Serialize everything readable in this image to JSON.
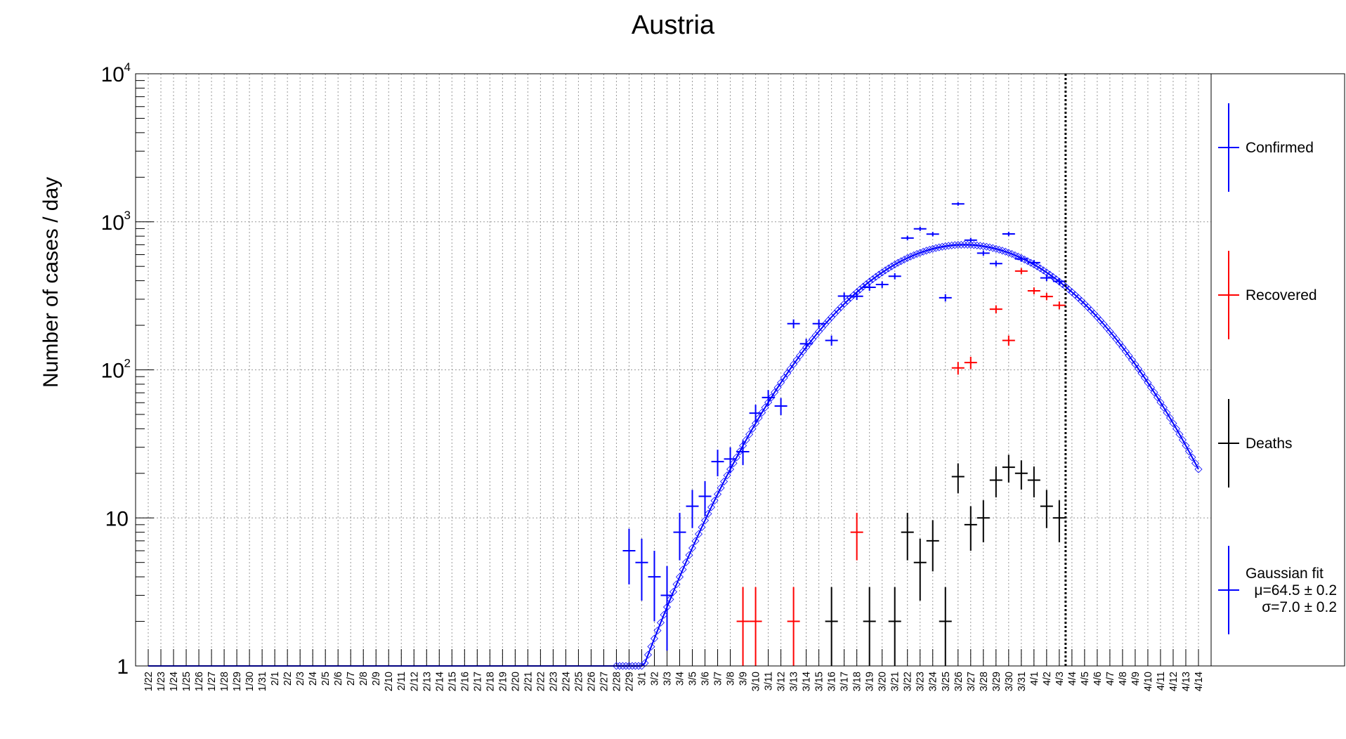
{
  "chart_data": {
    "type": "scatter",
    "title": "Austria",
    "xlabel": "",
    "ylabel": "Number of cases / day",
    "yscale": "log",
    "ylim": [
      1,
      10000
    ],
    "y_tick_labels": [
      "1",
      "10",
      "10",
      "10",
      "10"
    ],
    "y_tick_exponents": [
      "",
      "",
      "2",
      "3",
      "4"
    ],
    "grid": true,
    "legend_position": "right",
    "x": [
      "1/22",
      "1/23",
      "1/24",
      "1/25",
      "1/26",
      "1/27",
      "1/28",
      "1/29",
      "1/30",
      "1/31",
      "2/1",
      "2/2",
      "2/3",
      "2/4",
      "2/5",
      "2/6",
      "2/7",
      "2/8",
      "2/9",
      "2/10",
      "2/11",
      "2/12",
      "2/13",
      "2/14",
      "2/15",
      "2/16",
      "2/17",
      "2/18",
      "2/19",
      "2/20",
      "2/21",
      "2/22",
      "2/23",
      "2/24",
      "2/25",
      "2/26",
      "2/27",
      "2/28",
      "2/29",
      "3/1",
      "3/2",
      "3/3",
      "3/4",
      "3/5",
      "3/6",
      "3/7",
      "3/8",
      "3/9",
      "3/10",
      "3/11",
      "3/12",
      "3/13",
      "3/14",
      "3/15",
      "3/16",
      "3/17",
      "3/18",
      "3/19",
      "3/20",
      "3/21",
      "3/22",
      "3/23",
      "3/24",
      "3/25",
      "3/26",
      "3/27",
      "3/28",
      "3/29",
      "3/30",
      "3/31",
      "4/1",
      "4/2",
      "4/3",
      "4/4",
      "4/5",
      "4/6",
      "4/7",
      "4/8",
      "4/9",
      "4/10",
      "4/11",
      "4/12",
      "4/13",
      "4/14"
    ],
    "x_tick_labels": [
      "1/22",
      "1/23",
      "1/24",
      "1/25",
      "1/26",
      "1/27",
      "1/28",
      "1/29",
      "1/30",
      "1/31",
      "2/1",
      "2/2",
      "2/3",
      "2/4",
      "2/5",
      "2/6",
      "2/7",
      "2/8",
      "2/9",
      "2/10",
      "2/11",
      "2/12",
      "2/13",
      "2/14",
      "2/15",
      "2/16",
      "2/17",
      "2/18",
      "2/19",
      "2/20",
      "2/21",
      "2/22",
      "2/23",
      "2/24",
      "2/25",
      "2/26",
      "2/27",
      "2/28",
      "2/29",
      "3/1",
      "3/2",
      "3/3",
      "3/4",
      "3/5",
      "3/6",
      "3/7",
      "3/8",
      "3/9",
      "3/10",
      "3/11",
      "3/12",
      "3/13",
      "3/14",
      "3/15",
      "3/16",
      "3/17",
      "3/18",
      "3/19",
      "3/20",
      "3/21",
      "3/22",
      "3/23",
      "3/24",
      "3/25",
      "3/26",
      "3/27",
      "3/28",
      "3/29",
      "3/30",
      "3/31",
      "4/1",
      "4/2",
      "4/3",
      "4/4",
      "4/5",
      "4/6",
      "4/7",
      "4/8",
      "4/9",
      "4/10",
      "4/11",
      "4/12",
      "4/13",
      "4/14"
    ],
    "last_data_date": "4/3",
    "series": [
      {
        "name": "Confirmed",
        "color": "#0000ff",
        "points": [
          {
            "x": "2/29",
            "y": 6
          },
          {
            "x": "3/1",
            "y": 5
          },
          {
            "x": "3/2",
            "y": 4
          },
          {
            "x": "3/3",
            "y": 3
          },
          {
            "x": "3/4",
            "y": 8
          },
          {
            "x": "3/5",
            "y": 12
          },
          {
            "x": "3/6",
            "y": 14
          },
          {
            "x": "3/7",
            "y": 24
          },
          {
            "x": "3/8",
            "y": 25
          },
          {
            "x": "3/9",
            "y": 28
          },
          {
            "x": "3/10",
            "y": 51
          },
          {
            "x": "3/11",
            "y": 65
          },
          {
            "x": "3/12",
            "y": 57
          },
          {
            "x": "3/13",
            "y": 205
          },
          {
            "x": "3/14",
            "y": 150
          },
          {
            "x": "3/15",
            "y": 205
          },
          {
            "x": "3/16",
            "y": 158
          },
          {
            "x": "3/17",
            "y": 315
          },
          {
            "x": "3/18",
            "y": 314
          },
          {
            "x": "3/19",
            "y": 361
          },
          {
            "x": "3/20",
            "y": 377
          },
          {
            "x": "3/21",
            "y": 429
          },
          {
            "x": "3/22",
            "y": 777
          },
          {
            "x": "3/23",
            "y": 897
          },
          {
            "x": "3/24",
            "y": 826
          },
          {
            "x": "3/25",
            "y": 307
          },
          {
            "x": "3/26",
            "y": 1321
          },
          {
            "x": "3/27",
            "y": 752
          },
          {
            "x": "3/28",
            "y": 614
          },
          {
            "x": "3/29",
            "y": 522
          },
          {
            "x": "3/30",
            "y": 828
          },
          {
            "x": "3/31",
            "y": 561
          },
          {
            "x": "4/1",
            "y": 530
          },
          {
            "x": "4/2",
            "y": 418
          },
          {
            "x": "4/3",
            "y": 396
          }
        ]
      },
      {
        "name": "Recovered",
        "color": "#ff0000",
        "points": [
          {
            "x": "3/9",
            "y": 2
          },
          {
            "x": "3/10",
            "y": 2
          },
          {
            "x": "3/13",
            "y": 2
          },
          {
            "x": "3/18",
            "y": 8
          },
          {
            "x": "3/26",
            "y": 103
          },
          {
            "x": "3/27",
            "y": 112
          },
          {
            "x": "3/29",
            "y": 257
          },
          {
            "x": "3/30",
            "y": 158
          },
          {
            "x": "3/31",
            "y": 465
          },
          {
            "x": "4/1",
            "y": 342
          },
          {
            "x": "4/2",
            "y": 313
          },
          {
            "x": "4/3",
            "y": 273
          }
        ]
      },
      {
        "name": "Deaths",
        "color": "#000000",
        "points": [
          {
            "x": "3/16",
            "y": 2
          },
          {
            "x": "3/19",
            "y": 2
          },
          {
            "x": "3/21",
            "y": 2
          },
          {
            "x": "3/22",
            "y": 8
          },
          {
            "x": "3/23",
            "y": 5
          },
          {
            "x": "3/24",
            "y": 7
          },
          {
            "x": "3/25",
            "y": 2
          },
          {
            "x": "3/26",
            "y": 19
          },
          {
            "x": "3/27",
            "y": 9
          },
          {
            "x": "3/28",
            "y": 10
          },
          {
            "x": "3/29",
            "y": 18
          },
          {
            "x": "3/30",
            "y": 22
          },
          {
            "x": "3/31",
            "y": 20
          },
          {
            "x": "4/1",
            "y": 18
          },
          {
            "x": "4/2",
            "y": 12
          },
          {
            "x": "4/3",
            "y": 10
          }
        ]
      },
      {
        "name": "Gaussian fit",
        "color": "#0000ff",
        "fit": {
          "mu": 64.5,
          "sigma": 7.0,
          "amplitude": 700
        },
        "legend_lines": [
          "Gaussian fit",
          "μ=64.5 ± 0.2",
          "σ=7.0 ± 0.2"
        ]
      }
    ]
  }
}
